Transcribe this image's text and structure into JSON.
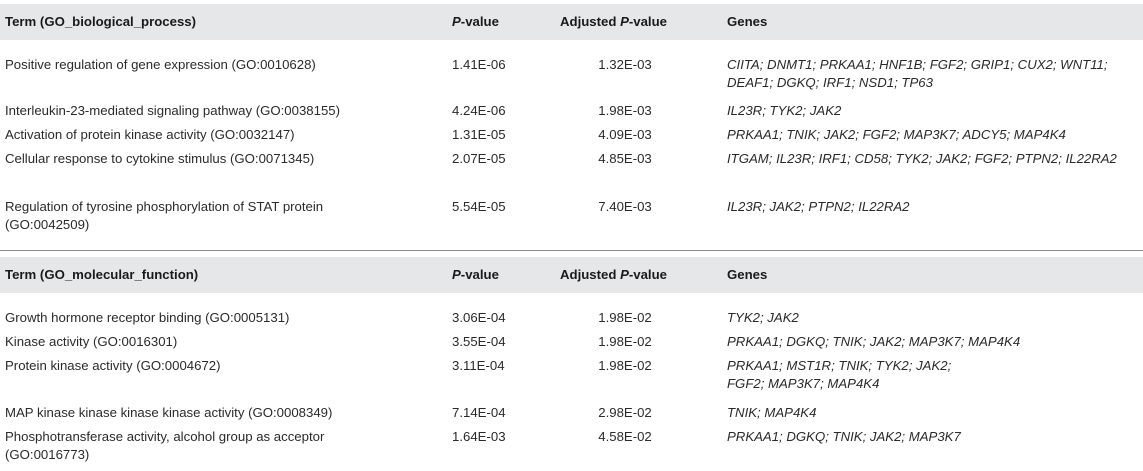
{
  "sections": [
    {
      "header": {
        "term": "Term (GO_biological_process)",
        "p_prefix": "P",
        "p_suffix": "-value",
        "adj_prefix": "Adjusted ",
        "adj_p": "P",
        "adj_suffix": "-value",
        "genes": "Genes"
      },
      "rows": [
        {
          "term": "Positive regulation of gene expression (GO:0010628)",
          "p": "1.41E-06",
          "adj": "1.32E-03",
          "genes": "CIITA; DNMT1; PRKAA1; HNF1B; FGF2; GRIP1; CUX2; WNT11; DEAF1; DGKQ; IRF1; NSD1; TP63"
        },
        {
          "term": "Interleukin-23-mediated signaling pathway (GO:0038155)",
          "p": "4.24E-06",
          "adj": "1.98E-03",
          "genes": "IL23R; TYK2; JAK2"
        },
        {
          "term": "Activation of protein kinase activity (GO:0032147)",
          "p": "1.31E-05",
          "adj": "4.09E-03",
          "genes": "PRKAA1; TNIK; JAK2; FGF2; MAP3K7; ADCY5; MAP4K4"
        },
        {
          "term": "Cellular response to cytokine stimulus (GO:0071345)",
          "p": "2.07E-05",
          "adj": "4.85E-03",
          "genes": "ITGAM; IL23R; IRF1; CD58; TYK2; JAK2; FGF2; PTPN2; IL22RA2"
        },
        {
          "term": "Regulation of tyrosine phosphorylation of STAT protein (GO:0042509)",
          "p": "5.54E-05",
          "adj": "7.40E-03",
          "genes": "IL23R; JAK2; PTPN2; IL22RA2"
        }
      ]
    },
    {
      "header": {
        "term": "Term (GO_molecular_function)",
        "p_prefix": "P",
        "p_suffix": "-value",
        "adj_prefix": "Adjusted ",
        "adj_p": "P",
        "adj_suffix": "-value",
        "genes": "Genes"
      },
      "rows": [
        {
          "term": "Growth hormone receptor binding (GO:0005131)",
          "p": "3.06E-04",
          "adj": "1.98E-02",
          "genes": "TYK2; JAK2"
        },
        {
          "term": "Kinase activity (GO:0016301)",
          "p": "3.55E-04",
          "adj": "1.98E-02",
          "genes": "PRKAA1; DGKQ; TNIK; JAK2; MAP3K7; MAP4K4"
        },
        {
          "term": "Protein kinase activity (GO:0004672)",
          "p": "3.11E-04",
          "adj": "1.98E-02",
          "genes": "PRKAA1; MST1R; TNIK; TYK2; JAK2; FGF2; MAP3K7; MAP4K4"
        },
        {
          "term": "MAP kinase kinase kinase kinase activity (GO:0008349)",
          "p": "7.14E-04",
          "adj": "2.98E-02",
          "genes": "TNIK; MAP4K4"
        },
        {
          "term": "Phosphotransferase activity, alcohol group as acceptor (GO:0016773)",
          "p": "1.64E-03",
          "adj": "4.58E-02",
          "genes": "PRKAA1; DGKQ; TNIK; JAK2; MAP3K7"
        }
      ]
    }
  ]
}
